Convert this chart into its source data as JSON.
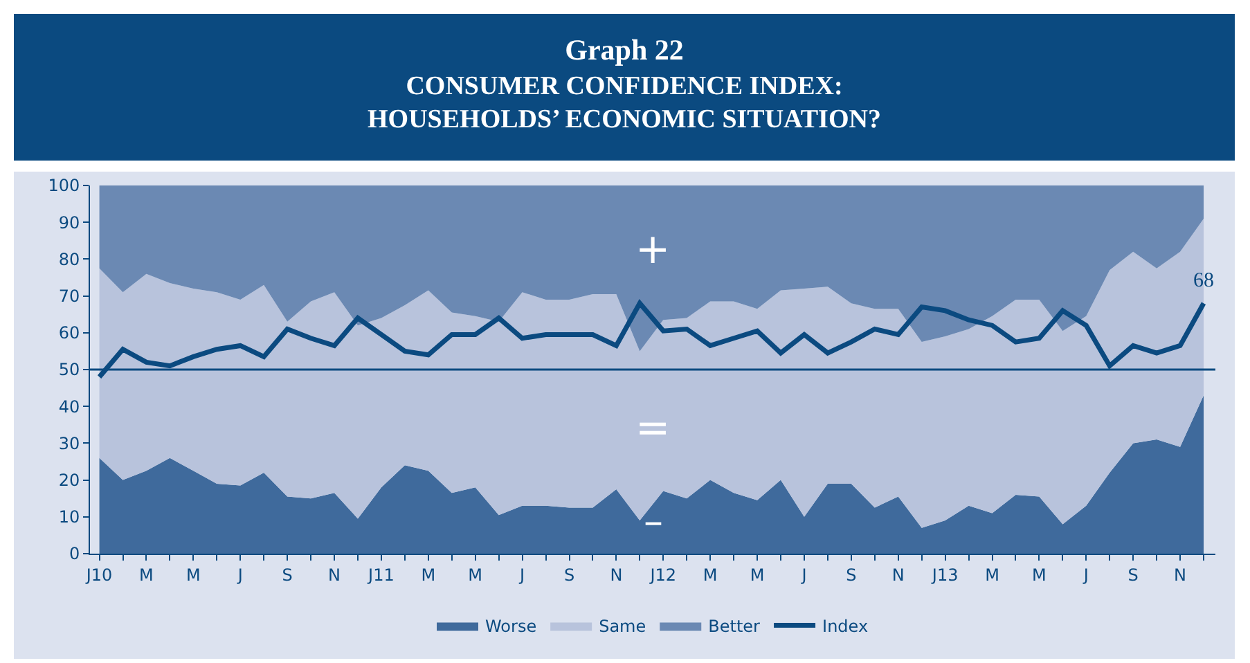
{
  "chart_data": {
    "type": "area",
    "title": "Graph 22",
    "subtitle": "CONSUMER CONFIDENCE INDEX:\nHOUSEHOLDS’ ECONOMIC SITUATION?",
    "categories": [
      "J10",
      null,
      "M",
      null,
      "M",
      null,
      "J",
      null,
      "S",
      null,
      "N",
      null,
      "J11",
      null,
      "M",
      null,
      "M",
      null,
      "J",
      null,
      "S",
      null,
      "N",
      null,
      "J12",
      null,
      "M",
      null,
      "M",
      null,
      "J",
      null,
      "S",
      null,
      "N",
      null,
      "J13",
      null,
      "M",
      null,
      "M",
      null,
      "J",
      null,
      "S",
      null,
      "N",
      null
    ],
    "stacked": true,
    "series": [
      {
        "name": "Worse",
        "color": "#3f6a9c",
        "values": [
          26,
          20,
          22.5,
          26,
          22.5,
          19,
          18.5,
          22,
          15.5,
          15,
          16.5,
          9.5,
          18,
          24,
          22.5,
          16.5,
          18,
          10.5,
          13,
          13,
          12.5,
          12.5,
          17.5,
          9,
          17,
          15,
          20,
          16.5,
          14.5,
          20,
          10,
          19,
          19,
          12.5,
          15.5,
          7,
          9,
          13,
          11,
          16,
          15.5,
          8,
          13,
          22,
          30,
          31,
          29,
          43
        ]
      },
      {
        "name": "Same",
        "color": "#b8c3dc",
        "values": [
          51.5,
          51,
          53.5,
          47.5,
          49.5,
          52,
          50.5,
          51,
          47.5,
          53.5,
          54.5,
          52.5,
          46,
          43.5,
          49,
          49,
          46.5,
          52.5,
          58,
          56,
          56.5,
          58,
          53,
          46,
          46.5,
          49,
          48.5,
          52,
          52,
          51.5,
          62,
          53.5,
          49,
          54,
          51,
          50.5,
          50,
          48,
          53.5,
          53,
          53.5,
          52.5,
          51.5,
          55,
          52,
          46.5,
          53,
          48
        ]
      },
      {
        "name": "Better",
        "color": "#6b89b3",
        "values": [
          22.5,
          29,
          24,
          26.5,
          28,
          29,
          31,
          27,
          37,
          31.5,
          29,
          38,
          36,
          32.5,
          28.5,
          34.5,
          35.5,
          37,
          29,
          31,
          31,
          29.5,
          29.5,
          45,
          36.5,
          36,
          31.5,
          31.5,
          33.5,
          28.5,
          28,
          27.5,
          32,
          33.5,
          33.5,
          42.5,
          41,
          39,
          35.5,
          31,
          31,
          39.5,
          35.5,
          23,
          18,
          22.5,
          18,
          9
        ]
      },
      {
        "name": "Index",
        "type": "line",
        "color": "#0b4a80",
        "values": [
          48,
          55.5,
          52,
          51,
          53.5,
          55.5,
          56.5,
          53.5,
          61,
          58.5,
          56.5,
          64,
          59.5,
          55,
          54,
          59.5,
          59.5,
          64,
          58.5,
          59.5,
          59.5,
          59.5,
          56.5,
          68,
          60.5,
          61,
          56.5,
          58.5,
          60.5,
          54.5,
          59.5,
          54.5,
          57.5,
          61,
          59.5,
          67,
          66,
          63.5,
          62,
          57.5,
          58.5,
          66,
          62,
          51,
          56.5,
          54.5,
          56.5,
          68
        ],
        "value_labels": [
          null,
          null,
          null,
          null,
          null,
          null,
          null,
          null,
          null,
          null,
          null,
          null,
          null,
          null,
          null,
          null,
          null,
          null,
          null,
          null,
          null,
          null,
          null,
          null,
          null,
          null,
          null,
          null,
          null,
          null,
          null,
          null,
          null,
          null,
          null,
          null,
          null,
          null,
          null,
          null,
          null,
          null,
          null,
          null,
          null,
          null,
          null,
          "68"
        ]
      }
    ],
    "ylim": [
      0,
      100
    ],
    "yticks": [
      0,
      10,
      20,
      30,
      40,
      50,
      60,
      70,
      80,
      90,
      100
    ],
    "ref_lines": [
      {
        "axis": "y",
        "value": 50,
        "color": "#0b4a80"
      }
    ],
    "annotations": [
      "+",
      "=",
      "–"
    ],
    "grid": false,
    "legend": "bottom",
    "line_style": "solid",
    "marker": "none"
  }
}
